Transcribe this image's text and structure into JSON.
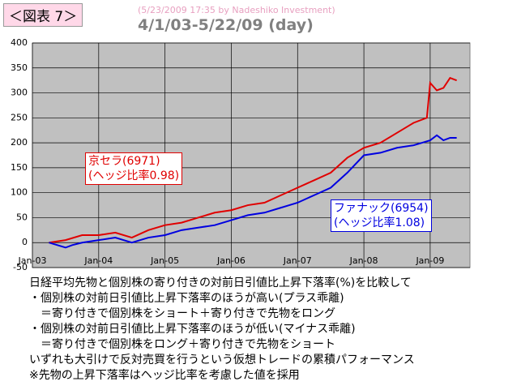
{
  "header": {
    "tag": "＜図表 7＞",
    "stamp": "(5/23/2009 17:35 by Nadeshiko Investment)",
    "subtitle": "4/1/03-5/22/09 (day)"
  },
  "chart_data": {
    "type": "line",
    "xlim": [
      2003,
      2009.6
    ],
    "xticks": [
      {
        "value": 2003,
        "label": "Jan-03"
      },
      {
        "value": 2004,
        "label": "Jan-04"
      },
      {
        "value": 2005,
        "label": "Jan-05"
      },
      {
        "value": 2006,
        "label": "Jan-06"
      },
      {
        "value": 2007,
        "label": "Jan-07"
      },
      {
        "value": 2008,
        "label": "Jan-08"
      },
      {
        "value": 2009,
        "label": "Jan-09"
      }
    ],
    "ylim": [
      -50,
      400
    ],
    "yticks": [
      -50,
      0,
      50,
      100,
      150,
      200,
      250,
      300,
      350,
      400
    ],
    "grid": true,
    "series": [
      {
        "name": "京セラ(6971)",
        "note": "(ヘッジ比率0.98)",
        "color": "#e00000",
        "x": [
          2003.25,
          2003.5,
          2003.75,
          2004,
          2004.25,
          2004.5,
          2004.75,
          2005,
          2005.25,
          2005.5,
          2005.75,
          2006,
          2006.25,
          2006.5,
          2006.75,
          2007,
          2007.25,
          2007.5,
          2007.75,
          2008,
          2008.25,
          2008.5,
          2008.75,
          2008.95,
          2009,
          2009.1,
          2009.2,
          2009.3,
          2009.4
        ],
        "values": [
          0,
          5,
          15,
          15,
          20,
          10,
          25,
          35,
          40,
          50,
          60,
          65,
          75,
          80,
          95,
          110,
          125,
          140,
          170,
          190,
          200,
          220,
          240,
          250,
          320,
          305,
          310,
          330,
          325
        ]
      },
      {
        "name": "ファナック(6954)",
        "note": "(ヘッジ比率1.08)",
        "color": "#0000e0",
        "x": [
          2003.25,
          2003.5,
          2003.6,
          2003.75,
          2004,
          2004.25,
          2004.5,
          2004.75,
          2005,
          2005.25,
          2005.5,
          2005.75,
          2006,
          2006.25,
          2006.5,
          2006.75,
          2007,
          2007.25,
          2007.5,
          2007.75,
          2008,
          2008.25,
          2008.5,
          2008.75,
          2009,
          2009.1,
          2009.2,
          2009.3,
          2009.4
        ],
        "values": [
          0,
          -10,
          -5,
          0,
          5,
          10,
          0,
          10,
          15,
          25,
          30,
          35,
          45,
          55,
          60,
          70,
          80,
          95,
          110,
          140,
          175,
          180,
          190,
          195,
          205,
          215,
          205,
          210,
          210
        ]
      }
    ]
  },
  "caption": [
    "日経平均先物と個別株の寄り付きの対前日引値比上昇下落率(%)を比較して",
    "・個別株の対前日引値比上昇下落率のほうが高い(プラス乖離)",
    "　＝寄り付きで個別株をショート＋寄り付きで先物をロング",
    "・個別株の対前日引値比上昇下落率のほうが低い(マイナス乖離)",
    "　＝寄り付きで個別株をロング＋寄り付きで先物をショート",
    "いずれも大引けで反対売買を行うという仮想トレードの累積パフォーマンス",
    "※先物の上昇下落率はヘッジ比率を考慮した値を採用"
  ]
}
